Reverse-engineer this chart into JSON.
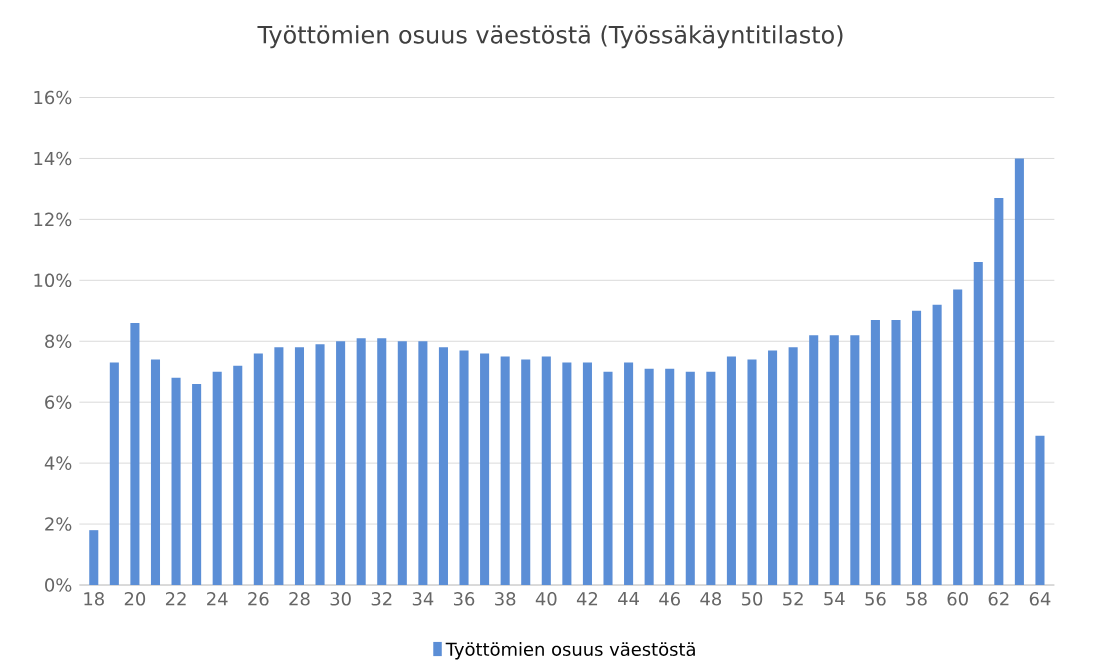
{
  "chart_data": {
    "type": "bar",
    "title": "Työttömien osuus väestöstä (Työssäkäyntitilasto)",
    "categories": [
      "18",
      null,
      "20",
      null,
      "22",
      null,
      "24",
      null,
      "26",
      null,
      "28",
      null,
      "30",
      null,
      "32",
      null,
      "34",
      null,
      "36",
      null,
      "38",
      null,
      "40",
      null,
      "42",
      null,
      "44",
      null,
      "46",
      null,
      "48",
      null,
      "50",
      null,
      "52",
      null,
      "54",
      null,
      "56",
      null,
      "58",
      null,
      "60",
      null,
      "62",
      null,
      "64"
    ],
    "series": [
      {
        "name": "Työttömien osuus väestöstä",
        "color": "#5b8ed6",
        "values": [
          1.8,
          7.3,
          8.6,
          7.4,
          6.8,
          6.6,
          7.0,
          7.2,
          7.6,
          7.8,
          7.8,
          7.9,
          8.0,
          8.1,
          8.1,
          8.0,
          8.0,
          7.8,
          7.7,
          7.6,
          7.5,
          7.4,
          7.5,
          7.3,
          7.3,
          7.0,
          7.3,
          7.1,
          7.1,
          7.0,
          7.0,
          7.5,
          7.4,
          7.7,
          7.8,
          8.2,
          8.2,
          8.2,
          8.7,
          8.7,
          9.0,
          9.2,
          9.7,
          10.6,
          12.7,
          14.0,
          4.9
        ]
      }
    ],
    "ylim": [
      0,
      16
    ],
    "yticks": [
      {
        "value": 0,
        "label": "0%"
      },
      {
        "value": 2,
        "label": "2%"
      },
      {
        "value": 4,
        "label": "4%"
      },
      {
        "value": 6,
        "label": "6%"
      },
      {
        "value": 8,
        "label": "8%"
      },
      {
        "value": 10,
        "label": "10%"
      },
      {
        "value": 12,
        "label": "12%"
      },
      {
        "value": 14,
        "label": "14%"
      },
      {
        "value": 16,
        "label": "16%"
      }
    ],
    "grid": "y",
    "legend": "bottom"
  }
}
